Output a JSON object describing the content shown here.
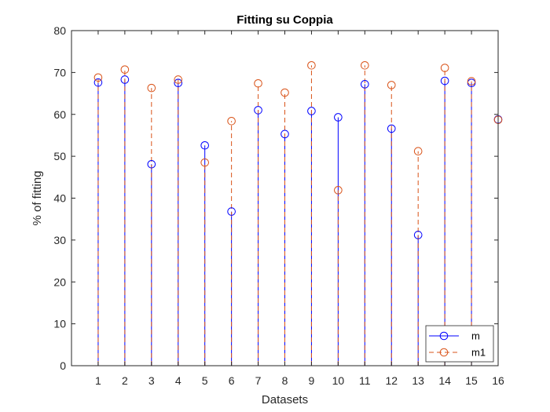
{
  "chart_data": {
    "type": "stem",
    "title": "Fitting su Coppia",
    "xlabel": "Datasets",
    "ylabel": "% of fitting",
    "xlim": [
      0,
      16
    ],
    "ylim": [
      0,
      80
    ],
    "xticks": [
      1,
      2,
      3,
      4,
      5,
      6,
      7,
      8,
      9,
      10,
      11,
      12,
      13,
      14,
      15,
      16
    ],
    "yticks": [
      0,
      10,
      20,
      30,
      40,
      50,
      60,
      70,
      80
    ],
    "grid": false,
    "legend_position": "bottom-right",
    "series": [
      {
        "name": "m",
        "color": "#0000ff",
        "line_style": "solid",
        "marker": "circle",
        "x": [
          1,
          2,
          3,
          4,
          5,
          6,
          7,
          8,
          9,
          10,
          11,
          12,
          13,
          14,
          15,
          16
        ],
        "values": [
          67.6,
          68.3,
          48.1,
          67.5,
          52.6,
          36.8,
          61.0,
          55.3,
          60.8,
          59.3,
          67.2,
          56.6,
          31.2,
          68.0,
          67.5,
          58.8
        ]
      },
      {
        "name": "m1",
        "color": "#d95319",
        "line_style": "dashed",
        "marker": "circle",
        "x": [
          1,
          2,
          3,
          4,
          5,
          6,
          7,
          8,
          9,
          10,
          11,
          12,
          13,
          14,
          15,
          16
        ],
        "values": [
          68.8,
          70.7,
          66.3,
          68.3,
          48.5,
          58.4,
          67.4,
          65.2,
          71.7,
          41.9,
          71.7,
          67.0,
          51.2,
          71.1,
          67.9,
          58.7
        ]
      }
    ]
  }
}
